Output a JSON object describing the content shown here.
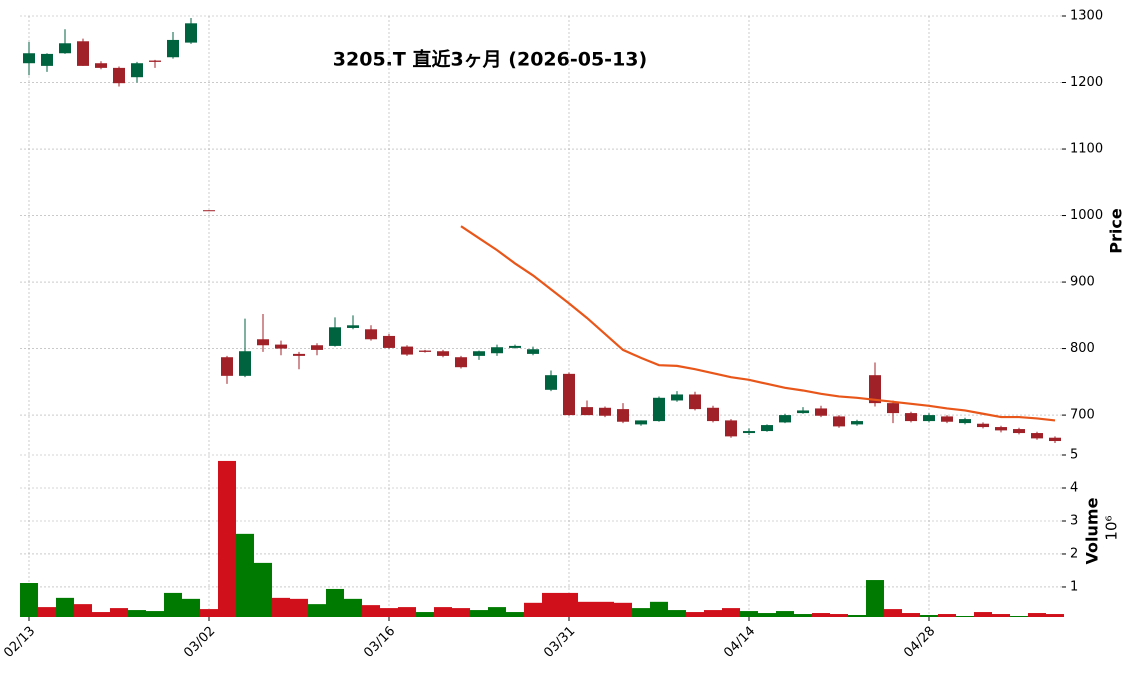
{
  "chart_data": {
    "type": "candlestick",
    "title": "3205.T  直近3ヶ月  (2026-05-13)",
    "ylabel": "Price",
    "categories": [
      "02/13",
      null,
      null,
      null,
      null,
      null,
      null,
      null,
      null,
      null,
      "03/02",
      null,
      null,
      null,
      null,
      null,
      null,
      null,
      null,
      null,
      "03/16",
      null,
      null,
      null,
      null,
      null,
      null,
      null,
      null,
      null,
      "03/31",
      null,
      null,
      null,
      null,
      null,
      null,
      null,
      null,
      null,
      "04/14",
      null,
      null,
      null,
      null,
      null,
      null,
      null,
      null,
      null,
      "04/28",
      null,
      null,
      null,
      null,
      null,
      null,
      null
    ],
    "open": [
      1229,
      1225,
      1244,
      1262,
      1229,
      1222,
      1208,
      1233,
      1238,
      1260,
      1008,
      787,
      759,
      814,
      806,
      792,
      805,
      804,
      831,
      829,
      819,
      803,
      797,
      796,
      787,
      789,
      793,
      801,
      792,
      738,
      762,
      712,
      711,
      709,
      686,
      691,
      722,
      731,
      711,
      692,
      673,
      676,
      689,
      703,
      710,
      698,
      686,
      760,
      718,
      703,
      691,
      698,
      688,
      687,
      682,
      679,
      673,
      666
    ],
    "high": [
      1261,
      1244,
      1280,
      1266,
      1232,
      1224,
      1231,
      1234,
      1276,
      1297,
      1008,
      789,
      845,
      852,
      812,
      795,
      808,
      847,
      850,
      835,
      822,
      805,
      798,
      798,
      789,
      797,
      806,
      806,
      803,
      767,
      764,
      722,
      713,
      718,
      692,
      728,
      736,
      735,
      714,
      694,
      680,
      686,
      702,
      712,
      714,
      700,
      693,
      779,
      722,
      705,
      703,
      700,
      696,
      689,
      684,
      681,
      675,
      668
    ],
    "low": [
      1211,
      1216,
      1243,
      1225,
      1220,
      1194,
      1200,
      1222,
      1236,
      1258,
      1007,
      747,
      757,
      795,
      790,
      769,
      790,
      803,
      829,
      812,
      800,
      789,
      794,
      787,
      770,
      783,
      789,
      800,
      790,
      736,
      699,
      700,
      697,
      688,
      684,
      690,
      720,
      707,
      689,
      666,
      670,
      675,
      688,
      702,
      697,
      681,
      684,
      713,
      688,
      689,
      689,
      688,
      686,
      680,
      674,
      671,
      663,
      658
    ],
    "close": [
      1244,
      1243,
      1259,
      1225,
      1222,
      1199,
      1229,
      1231,
      1264,
      1289,
      1007,
      759,
      796,
      805,
      800,
      789,
      798,
      832,
      835,
      814,
      801,
      791,
      795,
      789,
      772,
      796,
      802,
      804,
      799,
      760,
      700,
      700,
      699,
      690,
      692,
      726,
      731,
      709,
      691,
      668,
      676,
      685,
      700,
      707,
      699,
      683,
      691,
      718,
      703,
      691,
      700,
      690,
      694,
      682,
      677,
      673,
      665,
      661
    ],
    "ma": [
      null,
      null,
      null,
      null,
      null,
      null,
      null,
      null,
      null,
      null,
      null,
      null,
      null,
      null,
      null,
      null,
      null,
      null,
      null,
      null,
      null,
      null,
      null,
      null,
      984,
      966,
      948,
      928,
      910,
      889,
      868,
      846,
      822,
      798,
      786,
      775,
      774,
      769,
      763,
      757,
      753,
      747,
      741,
      737,
      732,
      728,
      726,
      723,
      720,
      717,
      714,
      710,
      707,
      702,
      697,
      697,
      695,
      692
    ],
    "ylim": [
      640,
      1300
    ],
    "yticks": [
      700,
      800,
      900,
      1000,
      1100,
      1200,
      1300
    ],
    "up_color": "#006340",
    "down_color": "#a02128",
    "ma_color": "#e8561a",
    "grid": true,
    "volume": {
      "ylabel": "Volume",
      "multiplier": "10⁶",
      "values": [
        1.12,
        0.39,
        0.67,
        0.48,
        0.24,
        0.36,
        0.3,
        0.27,
        0.82,
        0.64,
        0.33,
        4.82,
        2.61,
        1.73,
        0.67,
        0.64,
        0.48,
        0.94,
        0.64,
        0.45,
        0.36,
        0.39,
        0.24,
        0.39,
        0.36,
        0.3,
        0.39,
        0.24,
        0.52,
        0.82,
        0.82,
        0.55,
        0.55,
        0.52,
        0.36,
        0.55,
        0.3,
        0.24,
        0.3,
        0.36,
        0.27,
        0.21,
        0.27,
        0.18,
        0.21,
        0.18,
        0.15,
        1.21,
        0.33,
        0.21,
        0.15,
        0.18,
        0.12,
        0.24,
        0.18,
        0.12,
        0.21,
        0.18
      ],
      "colors": [
        "#007a00",
        "#d0101a",
        "#007a00",
        "#d0101a",
        "#d0101a",
        "#d0101a",
        "#007a00",
        "#007a00",
        "#007a00",
        "#007a00",
        "#d0101a",
        "#d0101a",
        "#007a00",
        "#007a00",
        "#d0101a",
        "#d0101a",
        "#007a00",
        "#007a00",
        "#007a00",
        "#d0101a",
        "#d0101a",
        "#d0101a",
        "#007a00",
        "#d0101a",
        "#d0101a",
        "#007a00",
        "#007a00",
        "#007a00",
        "#d0101a",
        "#d0101a",
        "#d0101a",
        "#d0101a",
        "#d0101a",
        "#d0101a",
        "#007a00",
        "#007a00",
        "#007a00",
        "#d0101a",
        "#d0101a",
        "#d0101a",
        "#007a00",
        "#007a00",
        "#007a00",
        "#007a00",
        "#d0101a",
        "#d0101a",
        "#007a00",
        "#007a00",
        "#d0101a",
        "#d0101a",
        "#007a00",
        "#d0101a",
        "#007a00",
        "#d0101a",
        "#d0101a",
        "#007a00",
        "#d0101a",
        "#d0101a"
      ],
      "ylim": [
        0.09,
        5
      ],
      "yticks": [
        1,
        2,
        3,
        4,
        5
      ]
    }
  }
}
